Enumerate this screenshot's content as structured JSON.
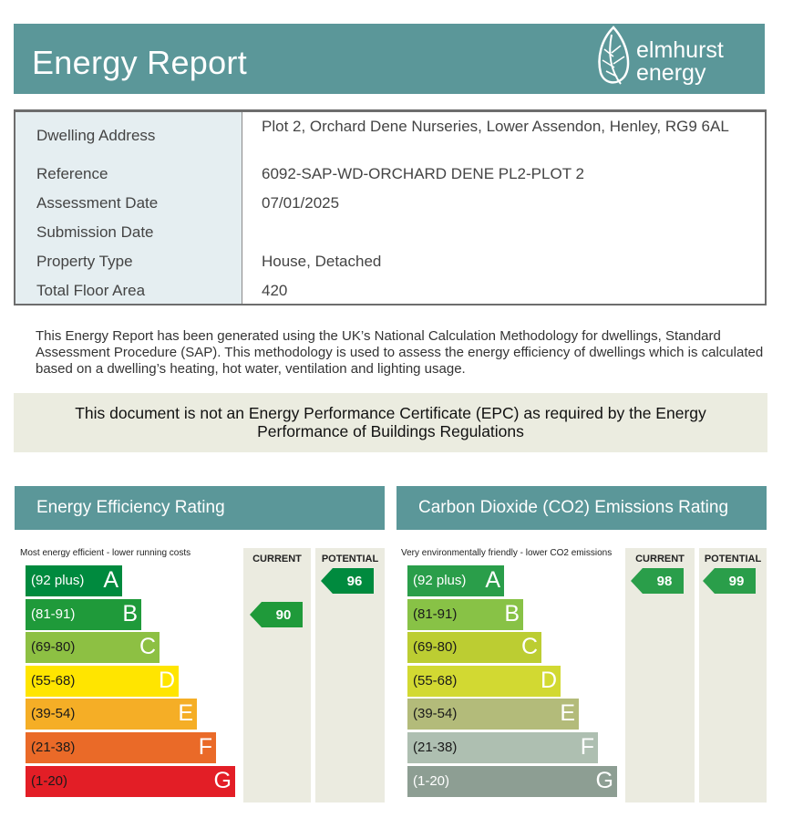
{
  "header": {
    "title": "Energy Report",
    "logo_line1": "elmhurst",
    "logo_line2": "energy"
  },
  "property": {
    "rows": [
      {
        "label": "Dwelling Address",
        "value": "Plot 2, Orchard Dene Nurseries, Lower Assendon, Henley, RG9 6AL"
      },
      {
        "label": "Reference",
        "value": "6092-SAP-WD-ORCHARD DENE PL2-PLOT 2"
      },
      {
        "label": "Assessment Date",
        "value": "07/01/2025"
      },
      {
        "label": "Submission Date",
        "value": ""
      },
      {
        "label": "Property Type",
        "value": "House, Detached"
      },
      {
        "label": "Total Floor Area",
        "value": "420"
      }
    ]
  },
  "description": "This Energy Report has been generated using the UK’s National Calculation Methodology for dwellings, Standard Assessment Procedure (SAP). This methodology is used to assess the energy efficiency of dwellings which is calculated based on a dwelling’s heating, hot water, ventilation and lighting usage.",
  "notice": "This document is not an Energy Performance Certificate (EPC) as required by the Energy Performance of Buildings Regulations",
  "energy_efficiency": {
    "title": "Energy Efficiency Rating",
    "caption": "Most energy efficient - lower running costs",
    "current_label": "CURRENT",
    "potential_label": "POTENTIAL",
    "current": "90",
    "potential": "96",
    "current_color": "#1f9a3a",
    "potential_color": "#008a3e",
    "bands": [
      {
        "range": "(92 plus)",
        "letter": "A",
        "color": "#008a3e"
      },
      {
        "range": "(81-91)",
        "letter": "B",
        "color": "#1f9a3a"
      },
      {
        "range": "(69-80)",
        "letter": "C",
        "color": "#8dc043"
      },
      {
        "range": "(55-68)",
        "letter": "D",
        "color": "#ffe500"
      },
      {
        "range": "(39-54)",
        "letter": "E",
        "color": "#f5ae26"
      },
      {
        "range": "(21-38)",
        "letter": "F",
        "color": "#ea6a28"
      },
      {
        "range": "(1-20)",
        "letter": "G",
        "color": "#e31e26"
      }
    ]
  },
  "co2_emissions": {
    "title": "Carbon Dioxide (CO2) Emissions Rating",
    "caption": "Very environmentally friendly - lower CO2 emissions",
    "current_label": "CURRENT",
    "potential_label": "POTENTIAL",
    "current": "98",
    "potential": "99",
    "current_color": "#2a9e4a",
    "potential_color": "#2a9e4a",
    "bands": [
      {
        "range": "(92 plus)",
        "letter": "A",
        "color": "#2a9e4a"
      },
      {
        "range": "(81-91)",
        "letter": "B",
        "color": "#88c246"
      },
      {
        "range": "(69-80)",
        "letter": "C",
        "color": "#bccd32"
      },
      {
        "range": "(55-68)",
        "letter": "D",
        "color": "#d2d932"
      },
      {
        "range": "(39-54)",
        "letter": "E",
        "color": "#b3bb7a"
      },
      {
        "range": "(21-38)",
        "letter": "F",
        "color": "#aebfb1"
      },
      {
        "range": "(1-20)",
        "letter": "G",
        "color": "#8d9e93"
      }
    ]
  }
}
